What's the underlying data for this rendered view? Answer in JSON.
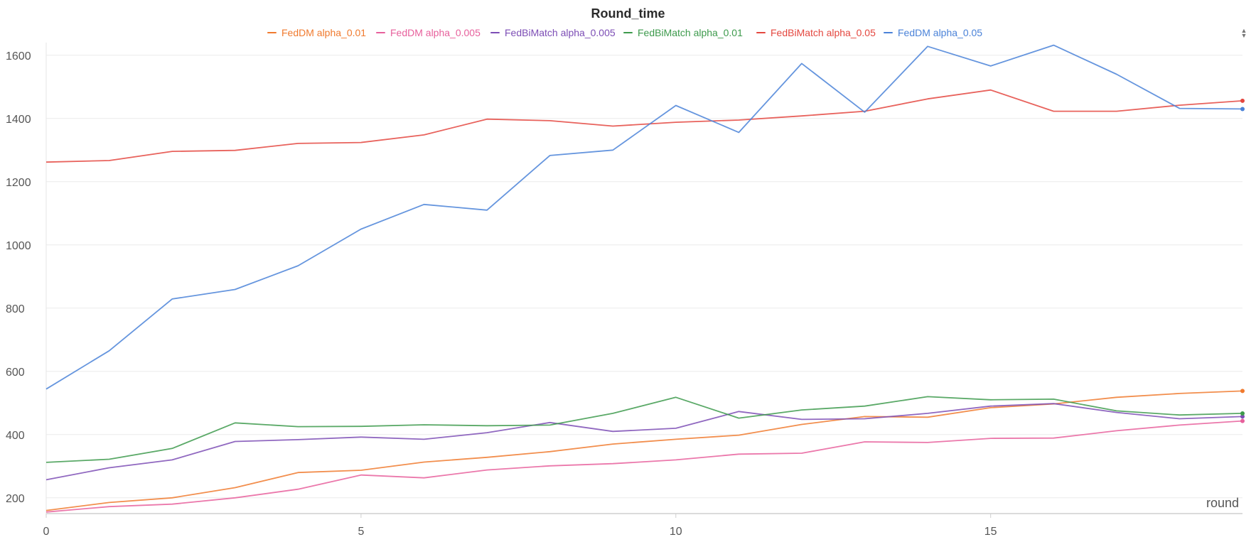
{
  "chart_data": {
    "type": "line",
    "title": "Round_time",
    "xlabel": "round",
    "ylabel": "",
    "xlim": [
      0,
      19
    ],
    "ylim": [
      150,
      1640
    ],
    "x_ticks": [
      0,
      5,
      10,
      15
    ],
    "y_ticks": [
      200,
      400,
      600,
      800,
      1000,
      1200,
      1400,
      1600
    ],
    "grid": true,
    "legend_position": "top-center",
    "x": [
      0,
      1,
      2,
      3,
      4,
      5,
      6,
      7,
      8,
      9,
      10,
      11,
      12,
      13,
      14,
      15,
      16,
      17,
      18,
      19
    ],
    "series": [
      {
        "name": "FedDM alpha_0.01",
        "color": "#f07a2e",
        "values": [
          160,
          185,
          200,
          232,
          280,
          287,
          313,
          328,
          346,
          370,
          385,
          398,
          432,
          457,
          455,
          485,
          497,
          518,
          530,
          538
        ]
      },
      {
        "name": "FedDM alpha_0.005",
        "color": "#e7609c",
        "values": [
          155,
          172,
          180,
          200,
          227,
          272,
          263,
          288,
          301,
          308,
          320,
          338,
          341,
          377,
          375,
          388,
          389,
          412,
          430,
          443
        ]
      },
      {
        "name": "FedBiMatch alpha_0.005",
        "color": "#7c4db5",
        "values": [
          257,
          295,
          320,
          378,
          384,
          392,
          385,
          406,
          438,
          410,
          420,
          473,
          448,
          450,
          467,
          490,
          498,
          470,
          450,
          457
        ]
      },
      {
        "name": "FedBiMatch alpha_0.01",
        "color": "#3d9a4c",
        "values": [
          312,
          322,
          356,
          437,
          425,
          426,
          431,
          428,
          430,
          467,
          518,
          452,
          478,
          490,
          520,
          510,
          512,
          475,
          462,
          467
        ]
      },
      {
        "name": "FedBiMatch alpha_0.05",
        "color": "#e4473f",
        "values": [
          1262,
          1267,
          1296,
          1299,
          1321,
          1324,
          1348,
          1398,
          1393,
          1376,
          1388,
          1395,
          1408,
          1423,
          1462,
          1490,
          1423,
          1423,
          1442,
          1456
        ]
      },
      {
        "name": "FedDM alpha_0.05",
        "color": "#4a82d8",
        "values": [
          544,
          665,
          829,
          859,
          934,
          1050,
          1128,
          1110,
          1283,
          1300,
          1441,
          1356,
          1574,
          1420,
          1628,
          1566,
          1632,
          1540,
          1432,
          1430
        ]
      }
    ]
  }
}
